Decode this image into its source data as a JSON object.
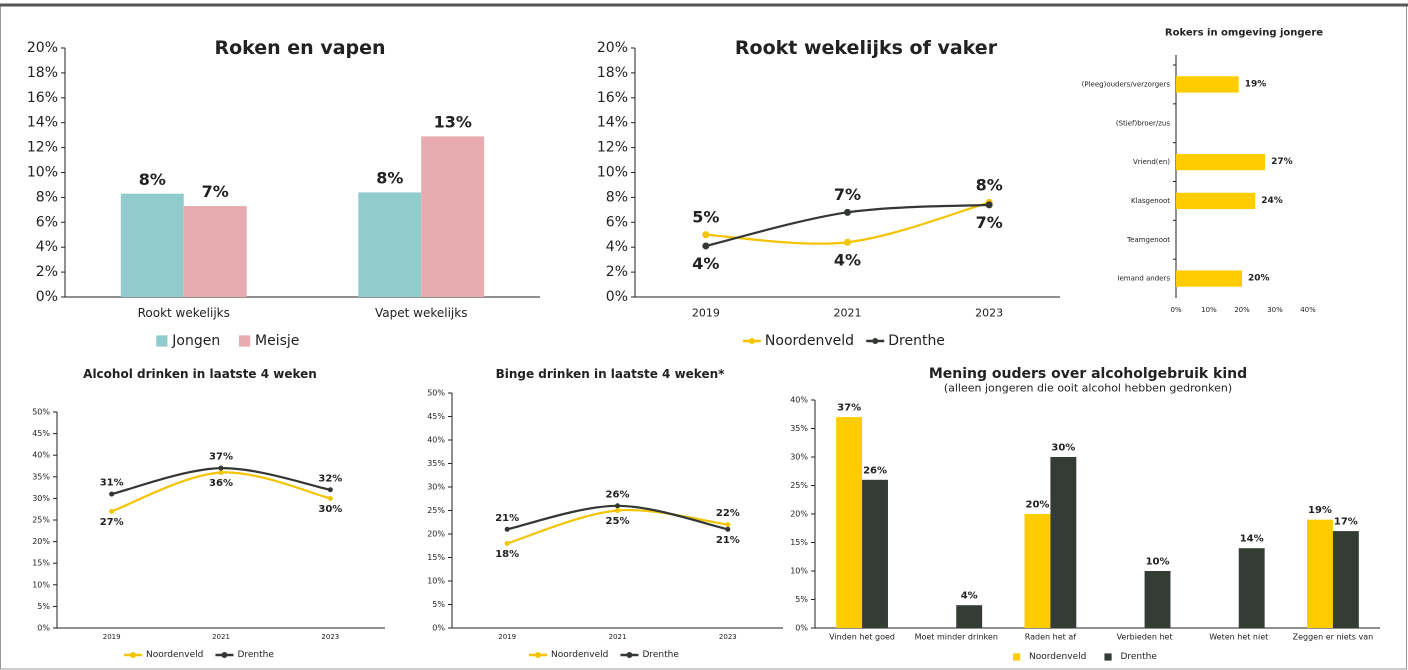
{
  "chart_data": [
    {
      "type": "bar",
      "title": "Roken en vapen",
      "categories": [
        "Rookt wekelijks",
        "Vapet wekelijks"
      ],
      "series": [
        {
          "name": "Jongen",
          "color": "#92cbcb",
          "values": [
            8.3,
            8.4
          ],
          "value_labels": [
            "8%",
            "8%"
          ]
        },
        {
          "name": "Meisje",
          "color": "#e8abb0",
          "values": [
            7.3,
            12.9
          ],
          "value_labels": [
            "7%",
            "13%"
          ]
        }
      ],
      "ylim": [
        0,
        20
      ],
      "yticks": [
        {
          "value": 0,
          "label": "0%"
        },
        {
          "value": 2,
          "label": "2%"
        },
        {
          "value": 4,
          "label": "4%"
        },
        {
          "value": 6,
          "label": "6%"
        },
        {
          "value": 8,
          "label": "8%"
        },
        {
          "value": 10,
          "label": "10%"
        },
        {
          "value": 12,
          "label": "12%"
        },
        {
          "value": 14,
          "label": "14%"
        },
        {
          "value": 16,
          "label": "16%"
        },
        {
          "value": 18,
          "label": "18%"
        },
        {
          "value": 20,
          "label": "20%"
        }
      ],
      "legend": "bottom"
    },
    {
      "type": "line",
      "title": "Rookt wekelijks of vaker",
      "categories": [
        "2019",
        "2021",
        "2023"
      ],
      "series": [
        {
          "name": "Noordenveld",
          "color": "#f5c400",
          "values": [
            5.0,
            4.4,
            7.6
          ],
          "value_labels": [
            "5%",
            "4%",
            "8%"
          ]
        },
        {
          "name": "Drenthe",
          "color": "#333833",
          "values": [
            4.1,
            6.8,
            7.4
          ],
          "value_labels": [
            "4%",
            "7%",
            "7%"
          ]
        }
      ],
      "ylim": [
        0,
        20
      ],
      "yticks": [
        {
          "value": 0,
          "label": "0%"
        },
        {
          "value": 2,
          "label": "2%"
        },
        {
          "value": 4,
          "label": "4%"
        },
        {
          "value": 6,
          "label": "6%"
        },
        {
          "value": 8,
          "label": "8%"
        },
        {
          "value": 10,
          "label": "10%"
        },
        {
          "value": 12,
          "label": "12%"
        },
        {
          "value": 14,
          "label": "14%"
        },
        {
          "value": 16,
          "label": "16%"
        },
        {
          "value": 18,
          "label": "18%"
        },
        {
          "value": 20,
          "label": "20%"
        }
      ],
      "legend": "bottom"
    },
    {
      "type": "barh",
      "title": "Rokers in omgeving jongere",
      "categories": [
        "(Pleeg)ouders/verzorgers",
        "(Stief)broer/zus",
        "Vriend(en)",
        "Klasgenoot",
        "Teamgenoot",
        "Iemand anders"
      ],
      "values": [
        19,
        null,
        27,
        24,
        null,
        20
      ],
      "value_labels": [
        "19%",
        null,
        "27%",
        "24%",
        null,
        "20%"
      ],
      "color": "#ffcc00",
      "xlim": [
        0,
        40
      ],
      "xticks": [
        {
          "value": 0,
          "label": "0%"
        },
        {
          "value": 10,
          "label": "10%"
        },
        {
          "value": 20,
          "label": "20%"
        },
        {
          "value": 30,
          "label": "30%"
        },
        {
          "value": 40,
          "label": "40%"
        }
      ]
    },
    {
      "type": "line",
      "title": "Alcohol drinken in laatste 4 weken",
      "categories": [
        "2019",
        "2021",
        "2023"
      ],
      "series": [
        {
          "name": "Noordenveld",
          "color": "#f5c400",
          "values": [
            27,
            36,
            30
          ],
          "value_labels": [
            "27%",
            "36%",
            "30%"
          ]
        },
        {
          "name": "Drenthe",
          "color": "#333833",
          "values": [
            31,
            37,
            32
          ],
          "value_labels": [
            "31%",
            "37%",
            "32%"
          ]
        }
      ],
      "ylim": [
        0,
        50
      ],
      "yticks": [
        {
          "value": 0,
          "label": "0%"
        },
        {
          "value": 5,
          "label": "5%"
        },
        {
          "value": 10,
          "label": "10%"
        },
        {
          "value": 15,
          "label": "15%"
        },
        {
          "value": 20,
          "label": "20%"
        },
        {
          "value": 25,
          "label": "25%"
        },
        {
          "value": 30,
          "label": "30%"
        },
        {
          "value": 35,
          "label": "35%"
        },
        {
          "value": 40,
          "label": "40%"
        },
        {
          "value": 45,
          "label": "45%"
        },
        {
          "value": 50,
          "label": "50%"
        }
      ],
      "legend": "bottom"
    },
    {
      "type": "line",
      "title": "Binge drinken in laatste 4 weken*",
      "categories": [
        "2019",
        "2021",
        "2023"
      ],
      "series": [
        {
          "name": "Noordenveld",
          "color": "#f5c400",
          "values": [
            18,
            25,
            22
          ],
          "value_labels": [
            "18%",
            "25%",
            "22%"
          ]
        },
        {
          "name": "Drenthe",
          "color": "#333833",
          "values": [
            21,
            26,
            21
          ],
          "value_labels": [
            "21%",
            "26%",
            "21%"
          ]
        }
      ],
      "ylim": [
        0,
        50
      ],
      "yticks": [
        {
          "value": 0,
          "label": "0%"
        },
        {
          "value": 5,
          "label": "5%"
        },
        {
          "value": 10,
          "label": "10%"
        },
        {
          "value": 15,
          "label": "15%"
        },
        {
          "value": 20,
          "label": "20%"
        },
        {
          "value": 25,
          "label": "25%"
        },
        {
          "value": 30,
          "label": "30%"
        },
        {
          "value": 35,
          "label": "35%"
        },
        {
          "value": 40,
          "label": "40%"
        },
        {
          "value": 45,
          "label": "45%"
        },
        {
          "value": 50,
          "label": "50%"
        }
      ],
      "legend": "bottom"
    },
    {
      "type": "bar",
      "title": "Mening ouders over alcoholgebruik kind",
      "subtitle": "(alleen jongeren die ooit alcohol hebben gedronken)",
      "categories": [
        "Vinden het goed",
        "Moet minder drinken",
        "Raden het af",
        "Verbieden het",
        "Weten het niet",
        "Zeggen er niets van"
      ],
      "series": [
        {
          "name": "Noordenveld",
          "color": "#ffcc00",
          "values": [
            37,
            null,
            20,
            null,
            null,
            19
          ],
          "value_labels": [
            "37%",
            null,
            "20%",
            null,
            null,
            "19%"
          ]
        },
        {
          "name": "Drenthe",
          "color": "#353b35",
          "values": [
            26,
            4,
            30,
            10,
            14,
            17
          ],
          "value_labels": [
            "26%",
            "4%",
            "30%",
            "10%",
            "14%",
            "17%"
          ]
        }
      ],
      "ylim": [
        0,
        40
      ],
      "yticks": [
        {
          "value": 0,
          "label": "0%"
        },
        {
          "value": 5,
          "label": "5%"
        },
        {
          "value": 10,
          "label": "10%"
        },
        {
          "value": 15,
          "label": "15%"
        },
        {
          "value": 20,
          "label": "20%"
        },
        {
          "value": 25,
          "label": "25%"
        },
        {
          "value": 30,
          "label": "30%"
        },
        {
          "value": 35,
          "label": "35%"
        },
        {
          "value": 40,
          "label": "40%"
        }
      ],
      "legend": "bottom"
    }
  ]
}
